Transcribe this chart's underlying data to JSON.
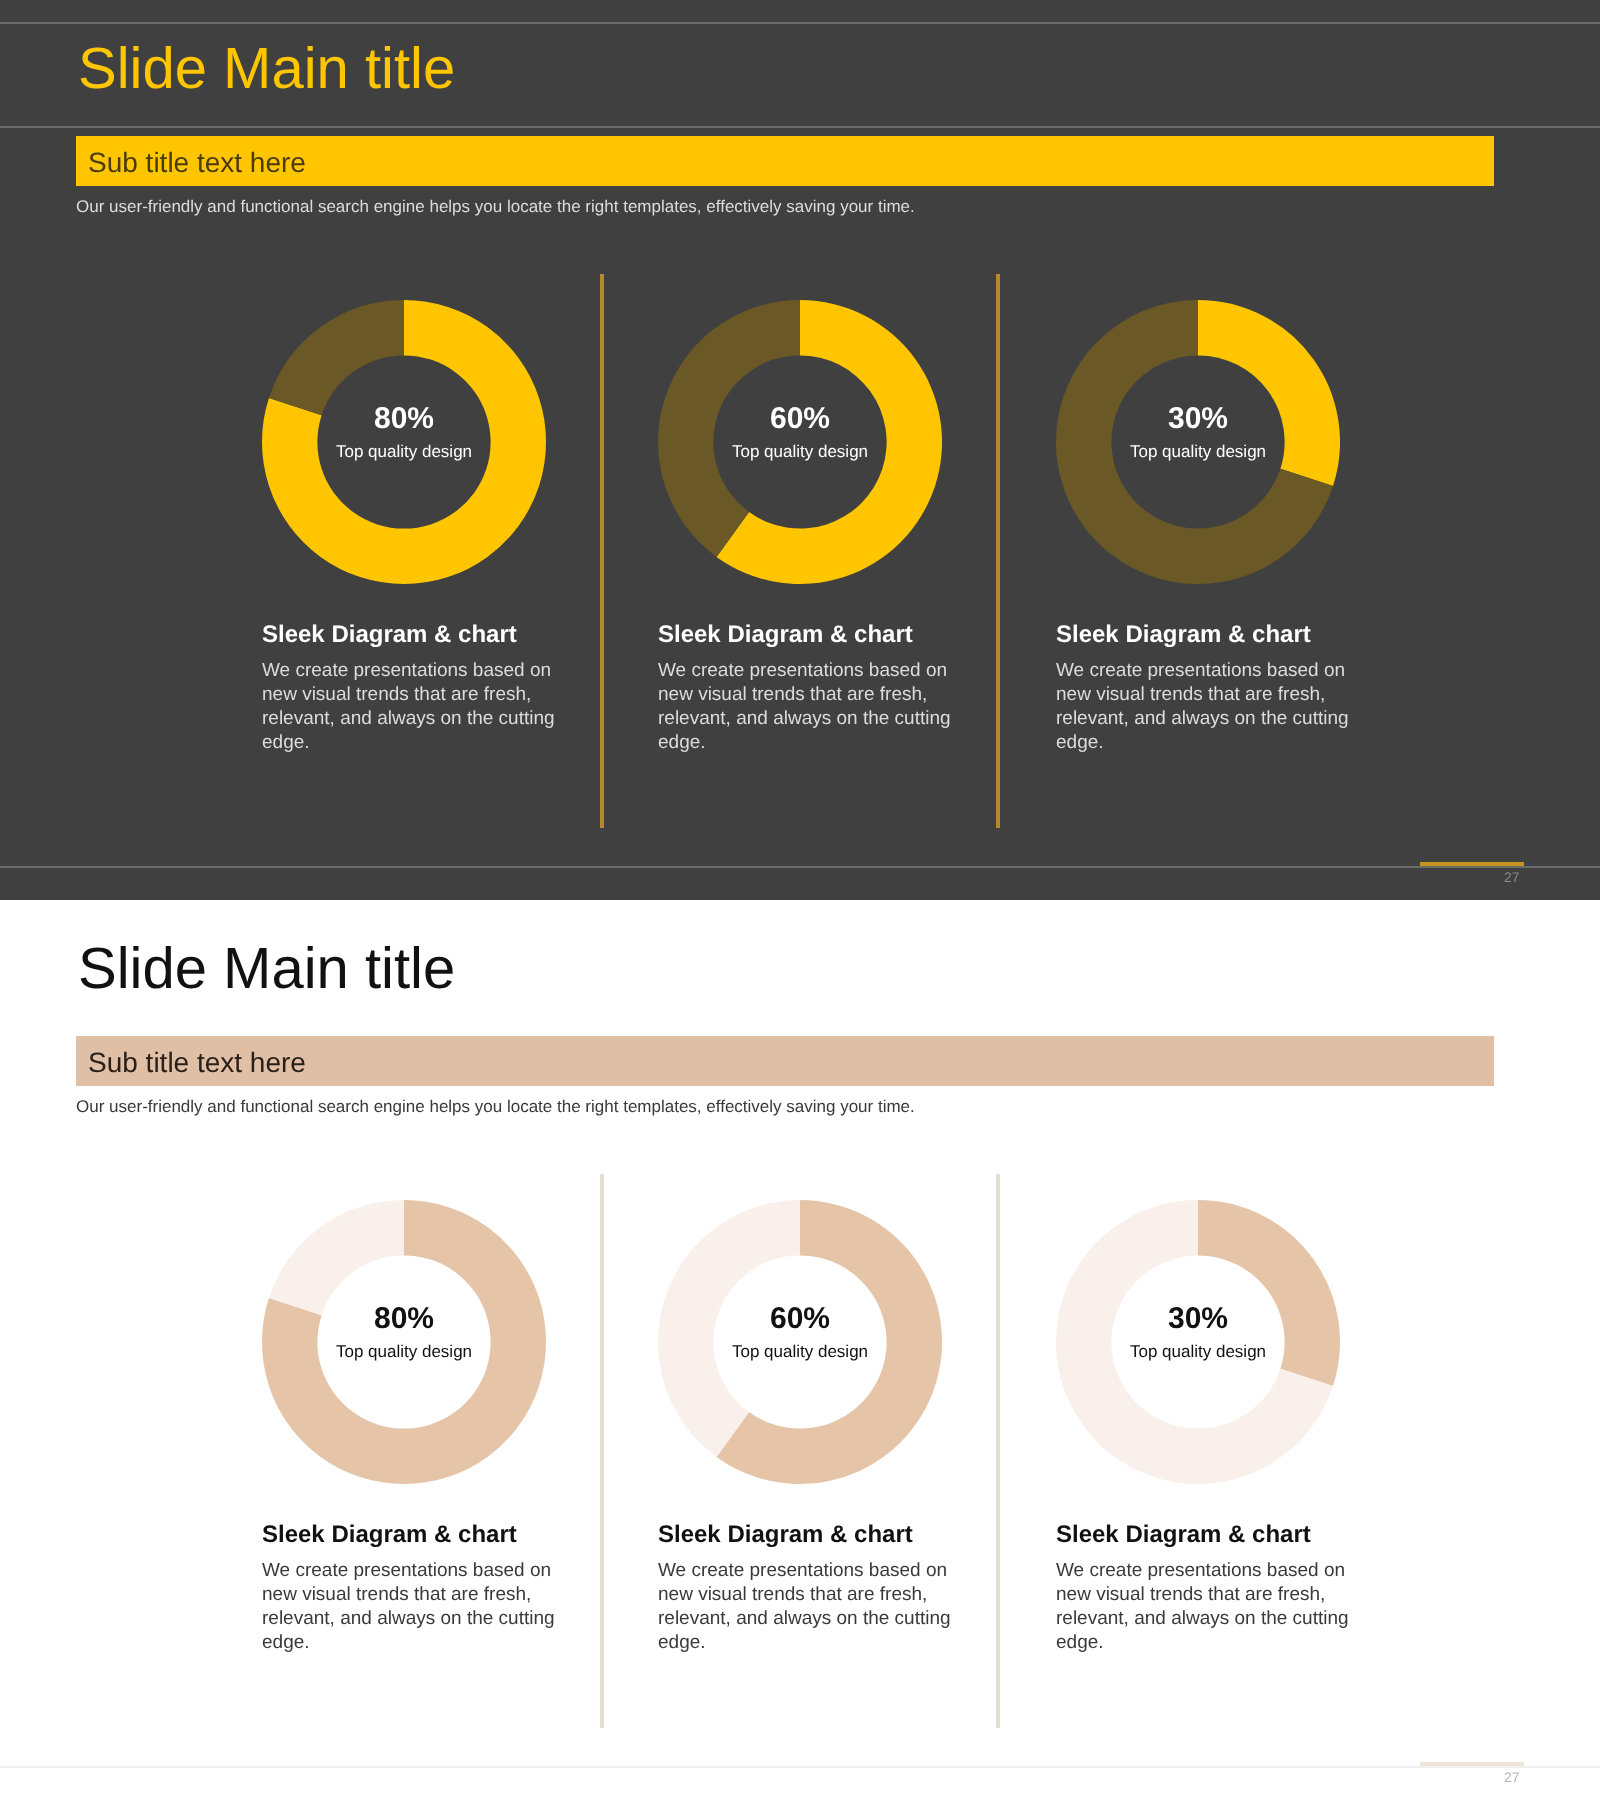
{
  "chart_data": [
    {
      "type": "other",
      "title": "Slide Main title",
      "subtitle": "Sub title text here",
      "annotations": [
        "Our user-friendly and functional search engine helps you locate the right templates, effectively saving your time.",
        "27"
      ]
    },
    {
      "type": "donut",
      "categories": [
        null,
        null
      ],
      "values": [
        80,
        20
      ],
      "colors": [
        "#ffc600",
        "#6b5827"
      ],
      "value_labels": [
        "80%",
        null
      ],
      "title": "Sleek Diagram & chart",
      "annotations": [
        "Top quality design",
        "We create presentations based on new visual trends that are fresh, relevant, and always on the cutting edge."
      ]
    },
    {
      "type": "donut",
      "categories": [
        null,
        null
      ],
      "values": [
        60,
        40
      ],
      "colors": [
        "#ffc600",
        "#6b5827"
      ],
      "value_labels": [
        "60%",
        null
      ],
      "title": "Sleek Diagram & chart",
      "annotations": [
        "Top quality design",
        "We create presentations based on new visual trends that are fresh, relevant, and always on the cutting edge."
      ]
    },
    {
      "type": "donut",
      "categories": [
        null,
        null
      ],
      "values": [
        30,
        70
      ],
      "colors": [
        "#ffc600",
        "#6b5827"
      ],
      "value_labels": [
        "30%",
        null
      ],
      "title": "Sleek Diagram & chart",
      "annotations": [
        "Top quality design",
        "We create presentations based on new visual trends that are fresh, relevant, and always on the cutting edge."
      ]
    },
    {
      "type": "other",
      "title": "Slide Main title",
      "subtitle": "Sub title text here",
      "annotations": [
        "Our user-friendly and functional search engine helps you locate the right templates, effectively saving your time.",
        "27"
      ]
    },
    {
      "type": "donut",
      "categories": [
        null,
        null
      ],
      "values": [
        80,
        20
      ],
      "colors": [
        "#e5c4a8",
        "#faf0eb"
      ],
      "value_labels": [
        "80%",
        null
      ],
      "title": "Sleek Diagram & chart",
      "annotations": [
        "Top quality design",
        "We create presentations based on new visual trends that are fresh, relevant, and always on the cutting edge."
      ]
    },
    {
      "type": "donut",
      "categories": [
        null,
        null
      ],
      "values": [
        60,
        40
      ],
      "colors": [
        "#e5c4a8",
        "#faf0eb"
      ],
      "value_labels": [
        "60%",
        null
      ],
      "title": "Sleek Diagram & chart",
      "annotations": [
        "Top quality design",
        "We create presentations based on new visual trends that are fresh, relevant, and always on the cutting edge."
      ]
    },
    {
      "type": "donut",
      "categories": [
        null,
        null
      ],
      "values": [
        30,
        70
      ],
      "colors": [
        "#e5c4a8",
        "#faf0eb"
      ],
      "value_labels": [
        "30%",
        null
      ],
      "title": "Sleek Diagram & chart",
      "annotations": [
        "Top quality design",
        "We create presentations based on new visual trends that are fresh, relevant, and always on the cutting edge."
      ]
    }
  ]
}
